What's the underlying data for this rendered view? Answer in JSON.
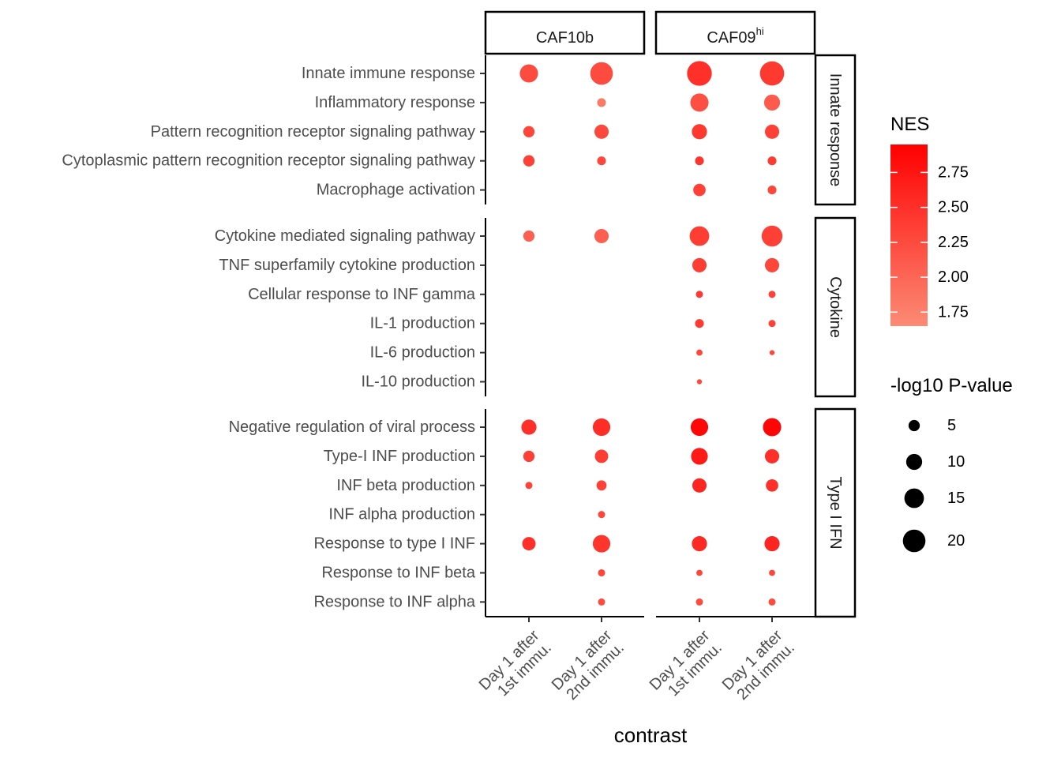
{
  "chart_data": {
    "type": "dot",
    "xlabel": "contrast",
    "facets_col": [
      {
        "label": "CAF10b",
        "sup": ""
      },
      {
        "label": "CAF09",
        "sup": "hi"
      }
    ],
    "contrasts": [
      [
        "Day 1 after",
        "1st immu."
      ],
      [
        "Day 1 after",
        "2nd immu."
      ]
    ],
    "facets_row": [
      {
        "label": "Innate  response",
        "terms": [
          "Innate immune response",
          "Inflammatory response",
          "Pattern recognition receptor signaling pathway",
          "Cytoplasmic pattern recognition receptor signaling pathway",
          "Macrophage activation"
        ]
      },
      {
        "label": "Cytokine",
        "terms": [
          "Cytokine mediated signaling pathway",
          "TNF superfamily cytokine production",
          "Cellular response to INF gamma",
          "IL-1 production",
          "IL-6 production",
          "IL-10 production"
        ]
      },
      {
        "label": "Type  I  IFN",
        "terms": [
          "Negative regulation of viral process",
          "Type-I INF production",
          "INF beta production",
          "INF alpha production",
          "Response to type I INF",
          "Response to INF beta",
          "Response to INF alpha"
        ]
      }
    ],
    "points": [
      {
        "term": "Innate immune response",
        "facet": 0,
        "contrast": 0,
        "nes": 2.25,
        "logp": 13
      },
      {
        "term": "Innate immune response",
        "facet": 0,
        "contrast": 1,
        "nes": 2.25,
        "logp": 20
      },
      {
        "term": "Innate immune response",
        "facet": 1,
        "contrast": 0,
        "nes": 2.5,
        "logp": 24
      },
      {
        "term": "Innate immune response",
        "facet": 1,
        "contrast": 1,
        "nes": 2.42,
        "logp": 23
      },
      {
        "term": "Inflammatory response",
        "facet": 0,
        "contrast": 1,
        "nes": 1.8,
        "logp": 3
      },
      {
        "term": "Inflammatory response",
        "facet": 1,
        "contrast": 0,
        "nes": 2.2,
        "logp": 13
      },
      {
        "term": "Inflammatory response",
        "facet": 1,
        "contrast": 1,
        "nes": 2.1,
        "logp": 10
      },
      {
        "term": "Pattern recognition receptor signaling pathway",
        "facet": 0,
        "contrast": 0,
        "nes": 2.3,
        "logp": 5
      },
      {
        "term": "Pattern recognition receptor signaling pathway",
        "facet": 0,
        "contrast": 1,
        "nes": 2.28,
        "logp": 8
      },
      {
        "term": "Pattern recognition receptor signaling pathway",
        "facet": 1,
        "contrast": 0,
        "nes": 2.42,
        "logp": 9
      },
      {
        "term": "Pattern recognition receptor signaling pathway",
        "facet": 1,
        "contrast": 1,
        "nes": 2.35,
        "logp": 8
      },
      {
        "term": "Cytoplasmic pattern recognition receptor signaling pathway",
        "facet": 0,
        "contrast": 0,
        "nes": 2.35,
        "logp": 5
      },
      {
        "term": "Cytoplasmic pattern recognition receptor signaling pathway",
        "facet": 0,
        "contrast": 1,
        "nes": 2.3,
        "logp": 3
      },
      {
        "term": "Cytoplasmic pattern recognition receptor signaling pathway",
        "facet": 1,
        "contrast": 0,
        "nes": 2.45,
        "logp": 3
      },
      {
        "term": "Cytoplasmic pattern recognition receptor signaling pathway",
        "facet": 1,
        "contrast": 1,
        "nes": 2.4,
        "logp": 3
      },
      {
        "term": "Macrophage activation",
        "facet": 1,
        "contrast": 0,
        "nes": 2.35,
        "logp": 6
      },
      {
        "term": "Macrophage activation",
        "facet": 1,
        "contrast": 1,
        "nes": 2.3,
        "logp": 3
      },
      {
        "term": "Cytokine mediated signaling pathway",
        "facet": 0,
        "contrast": 0,
        "nes": 2.05,
        "logp": 5
      },
      {
        "term": "Cytokine mediated signaling pathway",
        "facet": 0,
        "contrast": 1,
        "nes": 2.05,
        "logp": 8
      },
      {
        "term": "Cytokine mediated signaling pathway",
        "facet": 1,
        "contrast": 0,
        "nes": 2.38,
        "logp": 15
      },
      {
        "term": "Cytokine mediated signaling pathway",
        "facet": 1,
        "contrast": 1,
        "nes": 2.35,
        "logp": 17
      },
      {
        "term": "TNF superfamily cytokine production",
        "facet": 1,
        "contrast": 0,
        "nes": 2.38,
        "logp": 8
      },
      {
        "term": "TNF superfamily cytokine production",
        "facet": 1,
        "contrast": 1,
        "nes": 2.3,
        "logp": 8
      },
      {
        "term": "Cellular response to INF gamma",
        "facet": 1,
        "contrast": 0,
        "nes": 2.4,
        "logp": 2
      },
      {
        "term": "Cellular response to INF gamma",
        "facet": 1,
        "contrast": 1,
        "nes": 2.32,
        "logp": 2
      },
      {
        "term": "IL-1 production",
        "facet": 1,
        "contrast": 0,
        "nes": 2.4,
        "logp": 3
      },
      {
        "term": "IL-1 production",
        "facet": 1,
        "contrast": 1,
        "nes": 2.33,
        "logp": 2
      },
      {
        "term": "IL-6 production",
        "facet": 1,
        "contrast": 0,
        "nes": 2.3,
        "logp": 1.5
      },
      {
        "term": "IL-6 production",
        "facet": 1,
        "contrast": 1,
        "nes": 2.28,
        "logp": 1
      },
      {
        "term": "IL-10 production",
        "facet": 1,
        "contrast": 0,
        "nes": 2.28,
        "logp": 1
      },
      {
        "term": "Negative regulation of viral process",
        "facet": 0,
        "contrast": 0,
        "nes": 2.5,
        "logp": 9
      },
      {
        "term": "Negative regulation of viral process",
        "facet": 0,
        "contrast": 1,
        "nes": 2.52,
        "logp": 12
      },
      {
        "term": "Negative regulation of viral process",
        "facet": 1,
        "contrast": 0,
        "nes": 2.88,
        "logp": 12
      },
      {
        "term": "Negative regulation of viral process",
        "facet": 1,
        "contrast": 1,
        "nes": 2.9,
        "logp": 13
      },
      {
        "term": "Type-I INF production",
        "facet": 0,
        "contrast": 0,
        "nes": 2.35,
        "logp": 5
      },
      {
        "term": "Type-I INF production",
        "facet": 0,
        "contrast": 1,
        "nes": 2.38,
        "logp": 7
      },
      {
        "term": "Type-I INF production",
        "facet": 1,
        "contrast": 0,
        "nes": 2.7,
        "logp": 11
      },
      {
        "term": "Type-I INF production",
        "facet": 1,
        "contrast": 1,
        "nes": 2.5,
        "logp": 8
      },
      {
        "term": "INF beta production",
        "facet": 0,
        "contrast": 0,
        "nes": 2.32,
        "logp": 2
      },
      {
        "term": "INF beta production",
        "facet": 0,
        "contrast": 1,
        "nes": 2.33,
        "logp": 4
      },
      {
        "term": "INF beta production",
        "facet": 1,
        "contrast": 0,
        "nes": 2.6,
        "logp": 8
      },
      {
        "term": "INF beta production",
        "facet": 1,
        "contrast": 1,
        "nes": 2.5,
        "logp": 6
      },
      {
        "term": "INF alpha production",
        "facet": 0,
        "contrast": 1,
        "nes": 2.3,
        "logp": 2
      },
      {
        "term": "Response to type I INF",
        "facet": 0,
        "contrast": 0,
        "nes": 2.5,
        "logp": 7
      },
      {
        "term": "Response to type I INF",
        "facet": 0,
        "contrast": 1,
        "nes": 2.45,
        "logp": 12
      },
      {
        "term": "Response to type I INF",
        "facet": 1,
        "contrast": 0,
        "nes": 2.55,
        "logp": 9
      },
      {
        "term": "Response to type I INF",
        "facet": 1,
        "contrast": 1,
        "nes": 2.6,
        "logp": 9
      },
      {
        "term": "Response to INF beta",
        "facet": 0,
        "contrast": 1,
        "nes": 2.3,
        "logp": 2
      },
      {
        "term": "Response to INF beta",
        "facet": 1,
        "contrast": 0,
        "nes": 2.3,
        "logp": 1.5
      },
      {
        "term": "Response to INF beta",
        "facet": 1,
        "contrast": 1,
        "nes": 2.3,
        "logp": 1.5
      },
      {
        "term": "Response to INF alpha",
        "facet": 0,
        "contrast": 1,
        "nes": 2.25,
        "logp": 2
      },
      {
        "term": "Response to INF alpha",
        "facet": 1,
        "contrast": 0,
        "nes": 2.25,
        "logp": 2
      },
      {
        "term": "Response to INF alpha",
        "facet": 1,
        "contrast": 1,
        "nes": 2.25,
        "logp": 2
      }
    ],
    "color_legend": {
      "title": "NES",
      "range": [
        1.65,
        2.95
      ],
      "ticks": [
        1.75,
        2.0,
        2.25,
        2.5,
        2.75
      ],
      "tick_labels": [
        "1.75",
        "2.00",
        "2.25",
        "2.50",
        "2.75"
      ],
      "low_color": "#fc8b75",
      "high_color": "#ff0000"
    },
    "size_legend": {
      "title": "-log10 P-value",
      "values": [
        5,
        10,
        15,
        20
      ],
      "labels": [
        "5",
        "10",
        "15",
        "20"
      ]
    }
  }
}
